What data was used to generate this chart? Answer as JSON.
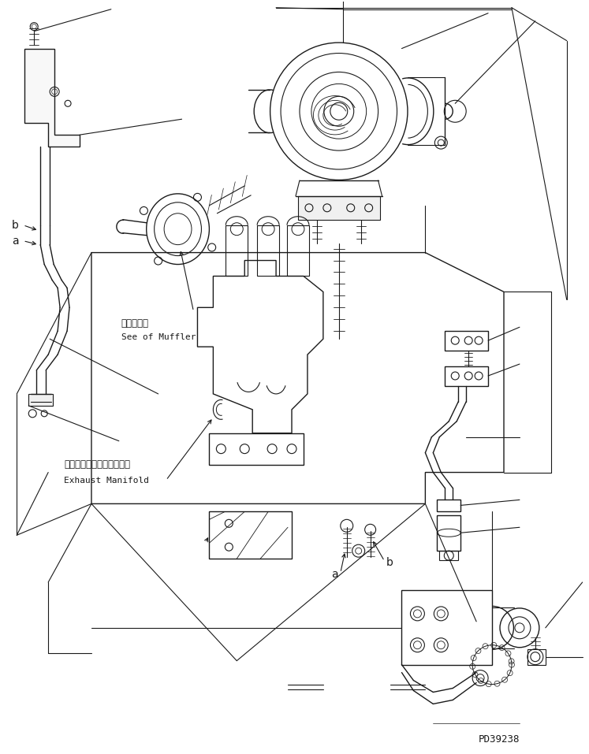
{
  "background_color": "#ffffff",
  "line_color": "#1a1a1a",
  "lw": 0.8,
  "lw2": 1.0,
  "fig_width": 7.47,
  "fig_height": 9.57,
  "dpi": 100,
  "texts": {
    "muffler_jp": "マフラ参照",
    "muffler_en": "See of Muffler",
    "exhaust_jp": "エキゾーストマニホールド",
    "exhaust_en": "Exhaust Manifold",
    "part_id": "PD39238",
    "a": "a",
    "b": "b"
  },
  "figsize": [
    7.47,
    9.57
  ]
}
